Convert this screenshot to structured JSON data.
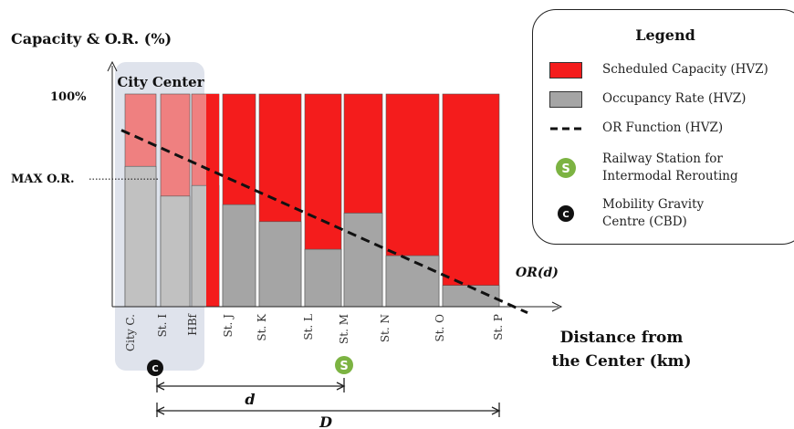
{
  "chart_data": {
    "type": "bar",
    "ylabel": "Capacity & O.R. (%)",
    "xlabel_line1": "Distance from",
    "xlabel_line2": "the Center (km)",
    "y_tick_100": "100%",
    "y_tick_max": "MAX O.R.",
    "max_or_value": 60,
    "zone_label": "City Center",
    "categories": [
      "City C.",
      "St. I",
      "HBf",
      "St. J",
      "St. K",
      "St. L",
      "St. M",
      "St. N",
      "St. O",
      "St. P"
    ],
    "series": [
      {
        "name": "Scheduled Capacity (HVZ)",
        "values": [
          100,
          100,
          100,
          100,
          100,
          100,
          100,
          100,
          100,
          100
        ],
        "color": "#f41c1c",
        "faded_color": "#ef8080"
      },
      {
        "name": "Occupancy Rate (HVZ)",
        "values": [
          66,
          52,
          57,
          48,
          40,
          27,
          44,
          24,
          10,
          0
        ],
        "color": "#a5a5a5",
        "faded_color": "#c1c1c1"
      }
    ],
    "or_function": {
      "name": "OR Function (HVZ)",
      "label": "OR(d)",
      "start": 83,
      "end": 4
    },
    "d_label": "d",
    "D_label": "D",
    "gravity_centre_glyph": "C",
    "railway_station_glyph": "S"
  },
  "legend": {
    "title": "Legend",
    "items": [
      {
        "label": "Scheduled Capacity (HVZ)"
      },
      {
        "label": "Occupancy Rate (HVZ)"
      },
      {
        "label": "OR Function (HVZ)"
      },
      {
        "label": "Railway Station for Intermodal Rerouting"
      },
      {
        "label": "Mobility Gravity Centre (CBD)"
      }
    ]
  },
  "colors": {
    "capacity": "#f41c1c",
    "occupancy": "#a5a5a5",
    "station": "#7cb342",
    "gravity": "#111111",
    "zone": "#dfe3ec"
  }
}
